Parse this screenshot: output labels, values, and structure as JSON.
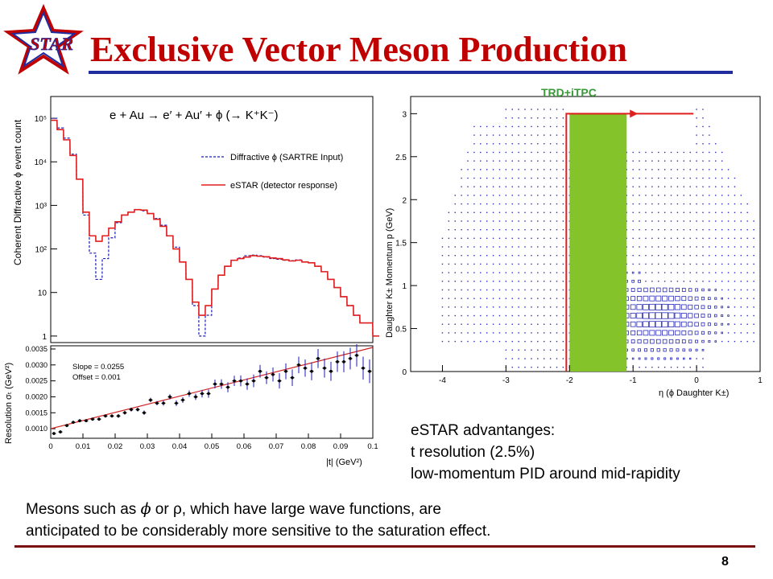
{
  "slide": {
    "logo_text": "STAR",
    "title": "Exclusive Vector Meson Production",
    "detector_tag": "TRD+iTPC",
    "advantages_line1": "eSTAR advantanges:",
    "advantages_line2": "t resolution (2.5%)",
    "advantages_line3": "low-momentum PID around mid-rapidity",
    "description_line1_pre": "Mesons such as ",
    "description_phi": "ϕ",
    "description_line1_post": " or ρ, which have large wave functions, are",
    "description_line2": "anticipated to be considerably more sensitive to the saturation effect.",
    "page_number": "8"
  },
  "colors": {
    "title": "#c00000",
    "title_rule": "#1f2d9e",
    "bottom_rule": "#7b1010",
    "tag": "#3a9a3a",
    "red_line": "#e01e1e",
    "blue_line": "#1a1ab0",
    "green_band": "#84c32a"
  },
  "chart_data": [
    {
      "type": "line",
      "panel": "top-left",
      "equation": "e + Au → e′ + Au′ + ϕ (→ K⁺K⁻)",
      "ylabel": "Coherent Diffractive ϕ event count",
      "yscale": "log",
      "y_ticks": [
        "1",
        "10",
        "10²",
        "10³",
        "10⁴",
        "10⁵"
      ],
      "legend_position": "top-right",
      "series": [
        {
          "name": "Diffractive ϕ (SARTRE Input)",
          "style": "dashed",
          "color": "#1a1ab0",
          "x": [
            0,
            0.002,
            0.004,
            0.006,
            0.008,
            0.01,
            0.012,
            0.014,
            0.016,
            0.018,
            0.02,
            0.022,
            0.024,
            0.026,
            0.028,
            0.03,
            0.032,
            0.034,
            0.036,
            0.038,
            0.04,
            0.042,
            0.044,
            0.046,
            0.048,
            0.05,
            0.052,
            0.054,
            0.056,
            0.058,
            0.06,
            0.062,
            0.064,
            0.066,
            0.068,
            0.07,
            0.072,
            0.074,
            0.076,
            0.078,
            0.08,
            0.082,
            0.084,
            0.086,
            0.088,
            0.09,
            0.092,
            0.094,
            0.096,
            0.098,
            0.1
          ],
          "y": [
            100000,
            60000,
            35000,
            15000,
            4000,
            600,
            80,
            20,
            60,
            180,
            400,
            600,
            700,
            800,
            750,
            650,
            500,
            350,
            200,
            110,
            50,
            20,
            5,
            1,
            3,
            12,
            25,
            40,
            55,
            62,
            70,
            72,
            70,
            65,
            60,
            58,
            55,
            54,
            56,
            50,
            48,
            40,
            30,
            20,
            13,
            8,
            5,
            3,
            2,
            2,
            1
          ]
        },
        {
          "name": "eSTAR (detector response)",
          "style": "solid",
          "color": "#e01e1e",
          "x": [
            0,
            0.002,
            0.004,
            0.006,
            0.008,
            0.01,
            0.012,
            0.014,
            0.016,
            0.018,
            0.02,
            0.022,
            0.024,
            0.026,
            0.028,
            0.03,
            0.032,
            0.034,
            0.036,
            0.038,
            0.04,
            0.042,
            0.044,
            0.046,
            0.048,
            0.05,
            0.052,
            0.054,
            0.056,
            0.058,
            0.06,
            0.062,
            0.064,
            0.066,
            0.068,
            0.07,
            0.072,
            0.074,
            0.076,
            0.078,
            0.08,
            0.082,
            0.084,
            0.086,
            0.088,
            0.09,
            0.092,
            0.094,
            0.096,
            0.098,
            0.1
          ],
          "y": [
            90000,
            55000,
            32000,
            14000,
            4000,
            700,
            200,
            150,
            200,
            300,
            420,
            600,
            700,
            800,
            780,
            650,
            480,
            330,
            200,
            100,
            50,
            20,
            6,
            3,
            5,
            12,
            25,
            40,
            55,
            60,
            65,
            70,
            68,
            66,
            62,
            60,
            56,
            53,
            55,
            50,
            48,
            40,
            30,
            20,
            13,
            8,
            5,
            3,
            2,
            2,
            1
          ]
        }
      ]
    },
    {
      "type": "scatter",
      "panel": "bottom-left",
      "xlabel": "|t| (GeV²)",
      "ylabel": "Resolution σₜ (GeV²)",
      "xlim": [
        0,
        0.1
      ],
      "ylim": [
        0.0007,
        0.0036
      ],
      "x_ticks": [
        "0",
        "0.01",
        "0.02",
        "0.03",
        "0.04",
        "0.05",
        "0.06",
        "0.07",
        "0.08",
        "0.09",
        "0.1"
      ],
      "y_ticks": [
        "0.0010",
        "0.0015",
        "0.0020",
        "0.0025",
        "0.0030",
        "0.0035"
      ],
      "annotation_slope": "Slope = 0.0255",
      "annotation_offset": "Offset = 0.001",
      "fit": {
        "slope": 0.0255,
        "offset": 0.001
      },
      "points": {
        "x": [
          0.001,
          0.003,
          0.005,
          0.007,
          0.009,
          0.011,
          0.013,
          0.015,
          0.017,
          0.019,
          0.021,
          0.023,
          0.025,
          0.027,
          0.029,
          0.031,
          0.033,
          0.035,
          0.037,
          0.039,
          0.041,
          0.043,
          0.045,
          0.047,
          0.049,
          0.051,
          0.053,
          0.055,
          0.057,
          0.059,
          0.061,
          0.063,
          0.065,
          0.067,
          0.069,
          0.071,
          0.073,
          0.075,
          0.077,
          0.079,
          0.081,
          0.083,
          0.085,
          0.087,
          0.089,
          0.091,
          0.093,
          0.095,
          0.097,
          0.099
        ],
        "y": [
          0.00085,
          0.0009,
          0.0011,
          0.0012,
          0.00125,
          0.00125,
          0.0013,
          0.0013,
          0.0014,
          0.0014,
          0.0014,
          0.0015,
          0.0016,
          0.0016,
          0.0015,
          0.0019,
          0.0018,
          0.0018,
          0.002,
          0.0018,
          0.0019,
          0.0021,
          0.002,
          0.0021,
          0.0021,
          0.0024,
          0.0024,
          0.0023,
          0.0025,
          0.0025,
          0.0024,
          0.0025,
          0.0028,
          0.0026,
          0.0027,
          0.0025,
          0.0028,
          0.0026,
          0.003,
          0.0029,
          0.0028,
          0.0032,
          0.0029,
          0.0028,
          0.0031,
          0.0031,
          0.0032,
          0.0033,
          0.0029,
          0.0028
        ],
        "err": [
          5e-05,
          5e-05,
          5e-05,
          5e-05,
          5e-05,
          5e-05,
          5e-05,
          5e-05,
          5e-05,
          5e-05,
          6e-05,
          6e-05,
          6e-05,
          6e-05,
          7e-05,
          7e-05,
          7e-05,
          8e-05,
          8e-05,
          9e-05,
          9e-05,
          0.0001,
          0.0001,
          0.00012,
          0.00013,
          0.00014,
          0.00015,
          0.00016,
          0.00016,
          0.00017,
          0.00018,
          0.0002,
          0.0002,
          0.0002,
          0.00022,
          0.00024,
          0.00025,
          0.00026,
          0.00026,
          0.00027,
          0.00028,
          0.0003,
          0.0003,
          0.0003,
          0.00032,
          0.00033,
          0.00034,
          0.00035,
          0.00036,
          0.00037
        ]
      }
    },
    {
      "type": "heatmap",
      "panel": "right",
      "xlabel": "η (ϕ Daughter K±)",
      "ylabel": "Daughter K± Momentum p (GeV)",
      "xlim": [
        -4.5,
        1.0
      ],
      "ylim": [
        0,
        3.2
      ],
      "x_ticks": [
        "-4",
        "-3",
        "-2",
        "-1",
        "0",
        "1"
      ],
      "y_ticks": [
        "0",
        "0.5",
        "1",
        "1.5",
        "2",
        "2.5",
        "3"
      ],
      "highlight_band": {
        "eta_min": -2.0,
        "eta_max": -1.1,
        "p_min": 0.0,
        "p_max": 3.0
      },
      "boundary": {
        "eta_left": -2.05,
        "eta_right": -0.05,
        "p_top": 3.0
      },
      "grid": {
        "eta_min": -4.0,
        "eta_max": 0.9,
        "eta_step": 0.1,
        "p_min": 0.05,
        "p_max": 3.05,
        "p_step": 0.1
      }
    }
  ]
}
